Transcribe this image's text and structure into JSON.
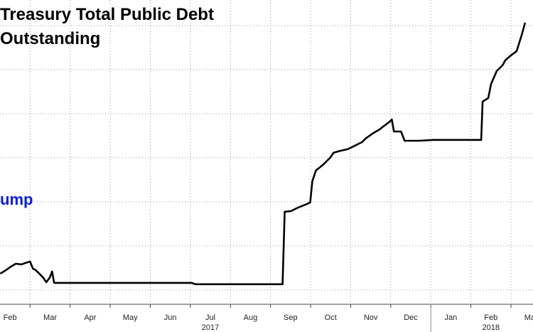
{
  "chart_data": {
    "type": "line",
    "title": "Treasury Total Public Debt Outstanding",
    "annotation": "ump",
    "annotation_color": "#0a1ed8",
    "xlim": [
      1.25,
      14.55
    ],
    "xticks": [
      {
        "value": 1,
        "label": "Feb"
      },
      {
        "value": 2,
        "label": "Mar"
      },
      {
        "value": 3,
        "label": "Apr"
      },
      {
        "value": 4,
        "label": "May"
      },
      {
        "value": 5,
        "label": "Jun"
      },
      {
        "value": 6,
        "label": "Jul"
      },
      {
        "value": 7,
        "label": "Aug"
      },
      {
        "value": 8,
        "label": "Sep"
      },
      {
        "value": 9,
        "label": "Oct"
      },
      {
        "value": 10,
        "label": "Nov"
      },
      {
        "value": 11,
        "label": "Dec"
      },
      {
        "value": 12,
        "label": "Jan"
      },
      {
        "value": 13,
        "label": "Feb"
      },
      {
        "value": 14,
        "label": "Mar"
      }
    ],
    "years": [
      {
        "value": 6.5,
        "label": "2017"
      },
      {
        "value": 13.5,
        "label": "2018"
      }
    ],
    "ylim": [
      19.735,
      21.116
    ],
    "yticks": [
      19.8,
      20.0,
      20.2,
      20.4,
      20.6,
      20.8,
      21.0
    ],
    "grid": true,
    "x": [
      1.257,
      1.398,
      1.522,
      1.646,
      1.788,
      1.894,
      2.0,
      2.071,
      2.142,
      2.23,
      2.319,
      2.407,
      2.496,
      2.549,
      2.602,
      6.035,
      6.124,
      8.301,
      8.354,
      8.513,
      8.69,
      8.867,
      8.991,
      9.044,
      9.133,
      9.31,
      9.487,
      9.575,
      9.752,
      9.929,
      10.106,
      10.283,
      10.372,
      10.549,
      10.726,
      10.814,
      10.956,
      11.027,
      11.08,
      11.257,
      11.345,
      11.699,
      12.053,
      12.584,
      13.257,
      13.292,
      13.434,
      13.504,
      13.646,
      13.788,
      13.858,
      14.0,
      14.142,
      14.265,
      14.354
    ],
    "series": [
      {
        "name": "Total Public Debt Outstanding",
        "color": "#000000",
        "values": [
          19.874,
          19.89,
          19.906,
          19.919,
          19.916,
          19.923,
          19.929,
          19.897,
          19.89,
          19.874,
          19.858,
          19.835,
          19.858,
          19.884,
          19.832,
          19.832,
          19.826,
          19.826,
          20.155,
          20.158,
          20.174,
          20.187,
          20.197,
          20.294,
          20.342,
          20.368,
          20.4,
          20.423,
          20.432,
          20.439,
          20.455,
          20.471,
          20.487,
          20.51,
          20.529,
          20.542,
          20.561,
          20.574,
          20.519,
          20.519,
          20.477,
          20.477,
          20.481,
          20.481,
          20.481,
          20.655,
          20.671,
          20.735,
          20.794,
          20.819,
          20.842,
          20.865,
          20.884,
          20.955,
          21.013
        ]
      }
    ]
  }
}
